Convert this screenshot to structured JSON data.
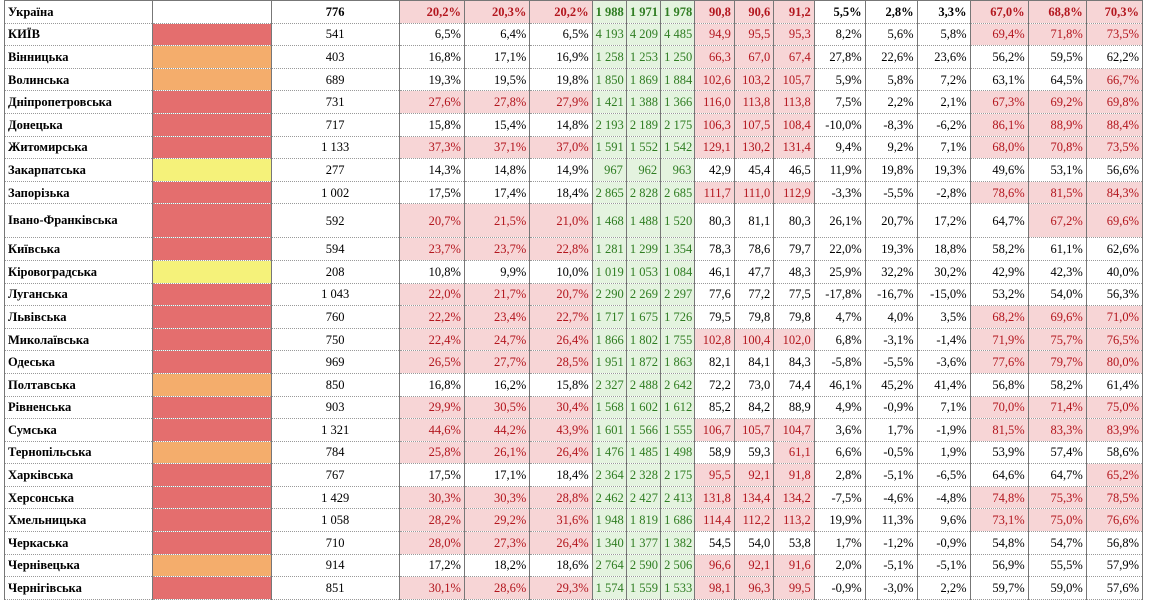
{
  "colors": {
    "red": "#e46e6e",
    "orange": "#f4ad6c",
    "yellow": "#f5f27a",
    "pink": "#f7d5d6",
    "green": "#e4f3df",
    "green_text": "#2f7d22",
    "red_text": "#b3161e"
  },
  "columns_hl": [
    false,
    false,
    false,
    false,
    true,
    true,
    true,
    true,
    true,
    true,
    false,
    false,
    false,
    true,
    true,
    true
  ],
  "rows": [
    {
      "name": "Україна",
      "color": "",
      "head": true,
      "v": [
        "776",
        "20,2%",
        "20,3%",
        "20,2%",
        "1 988",
        "1 971",
        "1 978",
        "90,8",
        "90,6",
        "91,2",
        "5,5%",
        "2,8%",
        "3,3%",
        "67,0%",
        "68,8%",
        "70,3%"
      ],
      "hl": [
        0,
        1,
        1,
        1,
        0,
        0,
        0,
        1,
        1,
        1,
        0,
        0,
        0,
        1,
        1,
        1
      ]
    },
    {
      "name": "КИЇВ",
      "color": "red",
      "v": [
        "541",
        "6,5%",
        "6,4%",
        "6,5%",
        "4 193",
        "4 209",
        "4 485",
        "94,9",
        "95,5",
        "95,3",
        "8,2%",
        "5,6%",
        "5,8%",
        "69,4%",
        "71,8%",
        "73,5%"
      ],
      "hl": [
        0,
        0,
        0,
        0,
        0,
        0,
        0,
        1,
        1,
        1,
        0,
        0,
        0,
        1,
        1,
        1
      ]
    },
    {
      "name": "Вінницька",
      "color": "orange",
      "v": [
        "403",
        "16,8%",
        "17,1%",
        "16,9%",
        "1 258",
        "1 253",
        "1 250",
        "66,3",
        "67,0",
        "67,4",
        "27,8%",
        "22,6%",
        "23,6%",
        "56,2%",
        "59,5%",
        "62,2%"
      ],
      "hl": [
        0,
        0,
        0,
        0,
        0,
        0,
        0,
        1,
        1,
        1,
        0,
        0,
        0,
        0,
        0,
        0
      ]
    },
    {
      "name": "Волинська",
      "color": "orange",
      "v": [
        "689",
        "19,3%",
        "19,5%",
        "19,8%",
        "1 850",
        "1 869",
        "1 884",
        "102,6",
        "103,2",
        "105,7",
        "5,9%",
        "5,8%",
        "7,2%",
        "63,1%",
        "64,5%",
        "66,7%"
      ],
      "hl": [
        0,
        0,
        0,
        0,
        0,
        0,
        0,
        1,
        1,
        1,
        0,
        0,
        0,
        0,
        0,
        1
      ]
    },
    {
      "name": "Дніпропетровська",
      "color": "red",
      "v": [
        "731",
        "27,6%",
        "27,8%",
        "27,9%",
        "1 421",
        "1 388",
        "1 366",
        "116,0",
        "113,8",
        "113,8",
        "7,5%",
        "2,2%",
        "2,1%",
        "67,3%",
        "69,2%",
        "69,8%"
      ],
      "hl": [
        0,
        1,
        1,
        1,
        0,
        0,
        0,
        1,
        1,
        1,
        0,
        0,
        0,
        1,
        1,
        1
      ]
    },
    {
      "name": "Донецька",
      "color": "red",
      "v": [
        "717",
        "15,8%",
        "15,4%",
        "14,8%",
        "2 193",
        "2 189",
        "2 175",
        "106,3",
        "107,5",
        "108,4",
        "-10,0%",
        "-8,3%",
        "-6,2%",
        "86,1%",
        "88,9%",
        "88,4%"
      ],
      "hl": [
        0,
        0,
        0,
        0,
        0,
        0,
        0,
        1,
        1,
        1,
        0,
        0,
        0,
        1,
        1,
        1
      ]
    },
    {
      "name": "Житомирська",
      "color": "red",
      "v": [
        "1 133",
        "37,3%",
        "37,1%",
        "37,0%",
        "1 591",
        "1 552",
        "1 542",
        "129,1",
        "130,2",
        "131,4",
        "9,4%",
        "9,2%",
        "7,1%",
        "68,0%",
        "70,8%",
        "73,5%"
      ],
      "hl": [
        0,
        1,
        1,
        1,
        0,
        0,
        0,
        1,
        1,
        1,
        0,
        0,
        0,
        1,
        1,
        1
      ]
    },
    {
      "name": "Закарпатська",
      "color": "yellow",
      "v": [
        "277",
        "14,3%",
        "14,8%",
        "14,9%",
        "967",
        "962",
        "963",
        "42,9",
        "45,4",
        "46,5",
        "11,9%",
        "19,8%",
        "19,3%",
        "49,6%",
        "53,1%",
        "56,6%"
      ],
      "hl": [
        0,
        0,
        0,
        0,
        0,
        0,
        0,
        0,
        0,
        0,
        0,
        0,
        0,
        0,
        0,
        0
      ]
    },
    {
      "name": "Запорізька",
      "color": "red",
      "v": [
        "1 002",
        "17,5%",
        "17,4%",
        "18,4%",
        "2 865",
        "2 828",
        "2 685",
        "111,7",
        "111,0",
        "112,9",
        "-3,3%",
        "-5,5%",
        "-2,8%",
        "78,6%",
        "81,5%",
        "84,3%"
      ],
      "hl": [
        0,
        0,
        0,
        0,
        0,
        0,
        0,
        1,
        1,
        1,
        0,
        0,
        0,
        1,
        1,
        1
      ]
    },
    {
      "name": "Івано-Франківська",
      "color": "red",
      "tall": true,
      "v": [
        "592",
        "20,7%",
        "21,5%",
        "21,0%",
        "1 468",
        "1 488",
        "1 520",
        "80,3",
        "81,1",
        "80,3",
        "26,1%",
        "20,7%",
        "17,2%",
        "64,7%",
        "67,2%",
        "69,6%"
      ],
      "hl": [
        0,
        1,
        1,
        1,
        0,
        0,
        0,
        0,
        0,
        0,
        0,
        0,
        0,
        0,
        1,
        1
      ]
    },
    {
      "name": "Київська",
      "color": "red",
      "v": [
        "594",
        "23,7%",
        "23,7%",
        "22,8%",
        "1 281",
        "1 299",
        "1 354",
        "78,3",
        "78,6",
        "79,7",
        "22,0%",
        "19,3%",
        "18,8%",
        "58,2%",
        "61,1%",
        "62,6%"
      ],
      "hl": [
        0,
        1,
        1,
        1,
        0,
        0,
        0,
        0,
        0,
        0,
        0,
        0,
        0,
        0,
        0,
        0
      ]
    },
    {
      "name": "Кіровоградська",
      "color": "yellow",
      "v": [
        "208",
        "10,8%",
        "9,9%",
        "10,0%",
        "1 019",
        "1 053",
        "1 084",
        "46,1",
        "47,7",
        "48,3",
        "25,9%",
        "32,2%",
        "30,2%",
        "42,9%",
        "42,3%",
        "40,0%"
      ],
      "hl": [
        0,
        0,
        0,
        0,
        0,
        0,
        0,
        0,
        0,
        0,
        0,
        0,
        0,
        0,
        0,
        0
      ]
    },
    {
      "name": "Луганська",
      "color": "red",
      "v": [
        "1 043",
        "22,0%",
        "21,7%",
        "20,7%",
        "2 290",
        "2 269",
        "2 297",
        "77,6",
        "77,2",
        "77,5",
        "-17,8%",
        "-16,7%",
        "-15,0%",
        "53,2%",
        "54,0%",
        "56,3%"
      ],
      "hl": [
        0,
        1,
        1,
        1,
        0,
        0,
        0,
        0,
        0,
        0,
        0,
        0,
        0,
        0,
        0,
        0
      ]
    },
    {
      "name": "Львівська",
      "color": "red",
      "v": [
        "760",
        "22,2%",
        "23,4%",
        "22,7%",
        "1 717",
        "1 675",
        "1 726",
        "79,5",
        "79,8",
        "79,8",
        "4,7%",
        "4,0%",
        "3,5%",
        "68,2%",
        "69,6%",
        "71,0%"
      ],
      "hl": [
        0,
        1,
        1,
        1,
        0,
        0,
        0,
        0,
        0,
        0,
        0,
        0,
        0,
        1,
        1,
        1
      ]
    },
    {
      "name": "Миколаївська",
      "color": "red",
      "v": [
        "750",
        "22,4%",
        "24,7%",
        "26,4%",
        "1 866",
        "1 802",
        "1 755",
        "102,8",
        "100,4",
        "102,0",
        "6,8%",
        "-3,1%",
        "-1,4%",
        "71,9%",
        "75,7%",
        "76,5%"
      ],
      "hl": [
        0,
        1,
        1,
        1,
        0,
        0,
        0,
        1,
        1,
        1,
        0,
        0,
        0,
        1,
        1,
        1
      ]
    },
    {
      "name": "Одеська",
      "color": "red",
      "v": [
        "969",
        "26,5%",
        "27,7%",
        "28,5%",
        "1 951",
        "1 872",
        "1 863",
        "82,1",
        "84,1",
        "84,3",
        "-5,8%",
        "-5,5%",
        "-3,6%",
        "77,6%",
        "79,7%",
        "80,0%"
      ],
      "hl": [
        0,
        1,
        1,
        1,
        0,
        0,
        0,
        0,
        0,
        0,
        0,
        0,
        0,
        1,
        1,
        1
      ]
    },
    {
      "name": "Полтавська",
      "color": "orange",
      "v": [
        "850",
        "16,8%",
        "16,2%",
        "15,8%",
        "2 327",
        "2 488",
        "2 642",
        "72,2",
        "73,0",
        "74,4",
        "46,1%",
        "45,2%",
        "41,4%",
        "56,8%",
        "58,2%",
        "61,4%"
      ],
      "hl": [
        0,
        0,
        0,
        0,
        0,
        0,
        0,
        0,
        0,
        0,
        0,
        0,
        0,
        0,
        0,
        0
      ]
    },
    {
      "name": "Рівненська",
      "color": "red",
      "v": [
        "903",
        "29,9%",
        "30,5%",
        "30,4%",
        "1 568",
        "1 602",
        "1 612",
        "85,2",
        "84,2",
        "88,9",
        "4,9%",
        "-0,9%",
        "7,1%",
        "70,0%",
        "71,4%",
        "75,0%"
      ],
      "hl": [
        0,
        1,
        1,
        1,
        0,
        0,
        0,
        0,
        0,
        0,
        0,
        0,
        0,
        1,
        1,
        1
      ]
    },
    {
      "name": "Сумська",
      "color": "red",
      "v": [
        "1 321",
        "44,6%",
        "44,2%",
        "43,9%",
        "1 601",
        "1 566",
        "1 555",
        "106,7",
        "105,7",
        "104,7",
        "3,6%",
        "1,7%",
        "-1,9%",
        "81,5%",
        "83,3%",
        "83,9%"
      ],
      "hl": [
        0,
        1,
        1,
        1,
        0,
        0,
        0,
        1,
        1,
        1,
        0,
        0,
        0,
        1,
        1,
        1
      ]
    },
    {
      "name": "Тернопільська",
      "color": "orange",
      "v": [
        "784",
        "25,8%",
        "26,1%",
        "26,4%",
        "1 476",
        "1 485",
        "1 498",
        "58,9",
        "59,3",
        "61,1",
        "6,6%",
        "-0,5%",
        "1,9%",
        "53,9%",
        "57,4%",
        "58,6%"
      ],
      "hl": [
        0,
        1,
        1,
        1,
        0,
        0,
        0,
        0,
        0,
        1,
        0,
        0,
        0,
        0,
        0,
        0
      ]
    },
    {
      "name": "Харківська",
      "color": "red",
      "v": [
        "767",
        "17,5%",
        "17,1%",
        "18,4%",
        "2 364",
        "2 328",
        "2 175",
        "95,5",
        "92,1",
        "91,8",
        "2,8%",
        "-5,1%",
        "-6,5%",
        "64,6%",
        "64,7%",
        "65,2%"
      ],
      "hl": [
        0,
        0,
        0,
        0,
        0,
        0,
        0,
        1,
        1,
        1,
        0,
        0,
        0,
        0,
        0,
        1
      ]
    },
    {
      "name": "Херсонська",
      "color": "red",
      "v": [
        "1 429",
        "30,3%",
        "30,3%",
        "28,8%",
        "2 462",
        "2 427",
        "2 413",
        "131,8",
        "134,4",
        "134,2",
        "-7,5%",
        "-4,6%",
        "-4,8%",
        "74,8%",
        "75,3%",
        "78,5%"
      ],
      "hl": [
        0,
        1,
        1,
        1,
        0,
        0,
        0,
        1,
        1,
        1,
        0,
        0,
        0,
        1,
        1,
        1
      ]
    },
    {
      "name": "Хмельницька",
      "color": "red",
      "v": [
        "1 058",
        "28,2%",
        "29,2%",
        "31,6%",
        "1 948",
        "1 819",
        "1 686",
        "114,4",
        "112,2",
        "113,2",
        "19,9%",
        "11,3%",
        "9,6%",
        "73,1%",
        "75,0%",
        "76,6%"
      ],
      "hl": [
        0,
        1,
        1,
        1,
        0,
        0,
        0,
        1,
        1,
        1,
        0,
        0,
        0,
        1,
        1,
        1
      ]
    },
    {
      "name": "Черкаська",
      "color": "red",
      "v": [
        "710",
        "28,0%",
        "27,3%",
        "26,4%",
        "1 340",
        "1 377",
        "1 382",
        "54,5",
        "54,0",
        "53,8",
        "1,7%",
        "-1,2%",
        "-0,9%",
        "54,8%",
        "54,7%",
        "56,8%"
      ],
      "hl": [
        0,
        1,
        1,
        1,
        0,
        0,
        0,
        0,
        0,
        0,
        0,
        0,
        0,
        0,
        0,
        0
      ]
    },
    {
      "name": "Чернівецька",
      "color": "orange",
      "v": [
        "914",
        "17,2%",
        "18,2%",
        "18,6%",
        "2 764",
        "2 590",
        "2 506",
        "96,6",
        "92,1",
        "91,6",
        "2,0%",
        "-5,1%",
        "-5,1%",
        "56,9%",
        "55,5%",
        "57,9%"
      ],
      "hl": [
        0,
        0,
        0,
        0,
        0,
        0,
        0,
        1,
        1,
        1,
        0,
        0,
        0,
        0,
        0,
        0
      ]
    },
    {
      "name": "Чернігівська",
      "color": "red",
      "v": [
        "851",
        "30,1%",
        "28,6%",
        "29,3%",
        "1 574",
        "1 559",
        "1 533",
        "98,1",
        "96,3",
        "99,5",
        "-0,9%",
        "-3,0%",
        "2,2%",
        "59,7%",
        "59,0%",
        "57,6%"
      ],
      "hl": [
        0,
        1,
        1,
        1,
        0,
        0,
        0,
        1,
        1,
        1,
        0,
        0,
        0,
        0,
        0,
        0
      ]
    }
  ]
}
